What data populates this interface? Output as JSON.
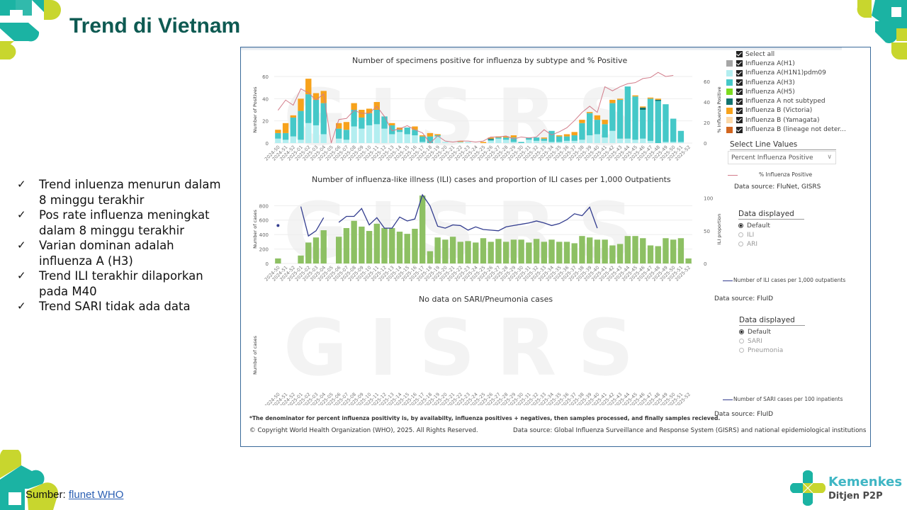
{
  "slide": {
    "title": "Trend di Vietnam",
    "bullets": [
      "Trend inluenza menurun dalam 8 minggu terakhir",
      "Pos rate influenza meningkat dalam 8 minggu terakhir",
      "Varian dominan adalah influenza A (H3)",
      "Trend ILI terakhir dilaporkan pada M40",
      "Trend SARI tidak ada data"
    ],
    "bullet_icon": "check-icon",
    "check_glyph": "✓",
    "source_label": "Sumber:",
    "source_link": "flunet WHO",
    "logo_text_1": "Kemenkes",
    "logo_text_2": "Ditjen P2P",
    "colors": {
      "title": "#0e5a52",
      "teal": "#1bb3a3",
      "lime": "#c8d62e",
      "link": "#2b5fb3"
    }
  },
  "dashboard": {
    "watermark": "GISRS",
    "legend": {
      "select_all": "Select all",
      "items": [
        {
          "label": "Influenza A(H1)",
          "color": "#a6a6a6"
        },
        {
          "label": "Influenza A(H1N1)pdm09",
          "color": "#b3eef0"
        },
        {
          "label": "Influenza A(H3)",
          "color": "#45c8c8"
        },
        {
          "label": "Influenza A(H5)",
          "color": "#7ddc1f"
        },
        {
          "label": "Influenza A not subtyped",
          "color": "#12736e"
        },
        {
          "label": "Influenza B (Victoria)",
          "color": "#f7a21b"
        },
        {
          "label": "Influenza B (Yamagata)",
          "color": "#fcd9a8"
        },
        {
          "label": "Influenza B (lineage not deter...",
          "color": "#d2661f"
        }
      ]
    },
    "select_line_values": {
      "label": "Select Line Values",
      "selected": "Percent Influenza Positive"
    },
    "line_legend_1": "% Influenza Positive",
    "data_source_1": "Data source: FluNet, GISRS",
    "data_displayed_ili": {
      "title": "Data displayed",
      "options": [
        "Default",
        "ILI",
        "ARI"
      ],
      "selected": "Default"
    },
    "line_legend_2": "Number of ILI cases per 1,000 outpatients",
    "data_source_2": "Data source: FluID",
    "data_displayed_sari": {
      "title": "Data displayed",
      "options": [
        "Default",
        "SARI",
        "Pneumonia"
      ],
      "selected": "Default"
    },
    "line_legend_3": "Number of SARI cases per 100 inpatients",
    "data_source_3": "Data source: FluID",
    "footnote": "*The denominator for percent influenza positivity is, by availabilty, influenza positives + negatives, then samples processed, and finally samples recieved.",
    "copyright": "© Copyright World Health Organization (WHO), 2025. All Rights Reserved.",
    "global_source": "Data source: Global Influenza Surveillance and Response System (GISRS) and national epidemiological institutions"
  },
  "chart_data": [
    {
      "type": "bar",
      "stacked": true,
      "title": "Number of specimens positive for influenza by subtype and % Positive",
      "xlabel": "",
      "ylabel": "Number of Positives",
      "y2label": "% Influenza Positive",
      "ylim": [
        0,
        60
      ],
      "y2lim": [
        0,
        65
      ],
      "yticks": [
        0,
        20,
        40,
        60
      ],
      "y2ticks": [
        0,
        20,
        40,
        60
      ],
      "categories": [
        "2024-50",
        "2024-51",
        "2024-52",
        "2025-01",
        "2025-02",
        "2025-03",
        "2025-04",
        "2025-05",
        "2025-06",
        "2025-07",
        "2025-08",
        "2025-09",
        "2025-10",
        "2025-11",
        "2025-12",
        "2025-13",
        "2025-14",
        "2025-15",
        "2025-16",
        "2025-17",
        "2025-18",
        "2025-19",
        "2025-20",
        "2025-21",
        "2025-22",
        "2025-23",
        "2025-24",
        "2025-25",
        "2025-26",
        "2025-27",
        "2025-28",
        "2025-29",
        "2025-30",
        "2025-31",
        "2025-32",
        "2025-33",
        "2025-34",
        "2025-35",
        "2025-36",
        "2025-37",
        "2025-38",
        "2025-39",
        "2025-40",
        "2025-41",
        "2025-42",
        "2025-43",
        "2025-44",
        "2025-45",
        "2025-46",
        "2025-47",
        "2025-48",
        "2025-49",
        "2025-50",
        "2025-51",
        "2025-52"
      ],
      "series": [
        {
          "name": "Influenza A(H1N1)pdm09",
          "color": "#b3eef0",
          "values": [
            4,
            3,
            6,
            3,
            18,
            16,
            8,
            0,
            4,
            3,
            15,
            13,
            16,
            17,
            13,
            8,
            10,
            8,
            7,
            1,
            0,
            6,
            1,
            0,
            1,
            1,
            0,
            0,
            2,
            4,
            3,
            1,
            0,
            3,
            2,
            2,
            1,
            1,
            2,
            2,
            3,
            7,
            8,
            5,
            11,
            4,
            4,
            3,
            4,
            2,
            0,
            1,
            1,
            1,
            0
          ]
        },
        {
          "name": "Influenza A(H3)",
          "color": "#45c8c8",
          "values": [
            5,
            6,
            17,
            26,
            26,
            23,
            28,
            0,
            9,
            9,
            15,
            10,
            11,
            13,
            11,
            8,
            2,
            6,
            5,
            5,
            6,
            1,
            0,
            0,
            0,
            0,
            0,
            0,
            1,
            1,
            2,
            4,
            1,
            2,
            3,
            2,
            10,
            5,
            4,
            5,
            15,
            20,
            13,
            12,
            25,
            35,
            47,
            39,
            26,
            38,
            38,
            34,
            21,
            10,
            0
          ]
        },
        {
          "name": "Influenza A not subtyped",
          "color": "#12736e",
          "values": [
            0,
            0,
            0,
            0,
            0,
            0,
            0,
            0,
            0,
            0,
            0,
            0,
            0,
            0,
            0,
            0,
            0,
            0,
            0,
            0,
            0,
            0,
            0,
            0,
            0,
            0,
            0,
            0,
            1,
            0,
            0,
            0,
            0,
            0,
            0,
            0,
            0,
            0,
            0,
            0,
            0,
            0,
            0,
            0,
            0,
            0,
            0,
            0,
            2,
            0,
            1,
            0,
            0,
            0,
            0
          ]
        },
        {
          "name": "Influenza B (Victoria)",
          "color": "#f7a21b",
          "values": [
            3,
            9,
            2,
            11,
            14,
            6,
            11,
            0,
            5,
            7,
            6,
            7,
            4,
            7,
            0,
            2,
            2,
            0,
            3,
            1,
            3,
            1,
            0,
            0,
            1,
            0,
            0,
            1,
            1,
            1,
            1,
            2,
            0,
            0,
            0,
            1,
            0,
            1,
            2,
            3,
            3,
            1,
            4,
            4,
            3,
            1,
            0,
            1,
            1,
            1,
            1,
            0,
            0,
            0,
            0
          ]
        }
      ],
      "line": {
        "name": "% Influenza Positive",
        "color": "#d27c8a",
        "values": [
          32,
          42,
          37,
          53,
          49,
          42,
          48,
          0,
          23,
          24,
          32,
          29,
          29,
          36,
          26,
          12,
          14,
          17,
          13,
          10,
          0,
          7,
          2,
          1,
          2,
          2,
          1,
          2,
          6,
          6,
          7,
          4,
          6,
          5,
          6,
          13,
          8,
          11,
          15,
          22,
          30,
          36,
          30,
          55,
          51,
          55,
          58,
          59,
          63,
          64,
          69,
          65,
          66,
          null,
          null
        ]
      }
    },
    {
      "type": "bar",
      "title": "Number of influenza-like illness (ILI) cases and proportion of ILI cases per 1,000 Outpatients",
      "xlabel": "",
      "ylabel": "Number of cases",
      "y2label": "ILI proportion",
      "ylim": [
        0,
        950
      ],
      "y2lim": [
        0,
        105
      ],
      "yticks": [
        0,
        200,
        400,
        600,
        800
      ],
      "y2ticks": [
        0,
        50,
        100
      ],
      "categories": [
        "2024-50",
        "2024-51",
        "2024-52",
        "2025-01",
        "2025-02",
        "2025-03",
        "2025-04",
        "2025-05",
        "2025-06",
        "2025-07",
        "2025-08",
        "2025-09",
        "2025-10",
        "2025-11",
        "2025-12",
        "2025-13",
        "2025-14",
        "2025-15",
        "2025-16",
        "2025-17",
        "2025-18",
        "2025-19",
        "2025-20",
        "2025-21",
        "2025-22",
        "2025-23",
        "2025-24",
        "2025-25",
        "2025-26",
        "2025-27",
        "2025-28",
        "2025-29",
        "2025-30",
        "2025-31",
        "2025-32",
        "2025-33",
        "2025-34",
        "2025-35",
        "2025-36",
        "2025-37",
        "2025-38",
        "2025-39",
        "2025-40",
        "2025-41",
        "2025-42",
        "2025-43",
        "2025-44",
        "2025-45",
        "2025-46",
        "2025-47",
        "2025-48",
        "2025-49",
        "2025-50",
        "2025-51",
        "2025-52"
      ],
      "series": [
        {
          "name": "Number of ILI cases",
          "color": "#8dc063",
          "values": [
            70,
            null,
            null,
            110,
            290,
            360,
            460,
            null,
            370,
            490,
            590,
            510,
            450,
            550,
            490,
            490,
            440,
            410,
            480,
            940,
            170,
            360,
            330,
            370,
            300,
            310,
            290,
            350,
            300,
            340,
            300,
            330,
            330,
            290,
            340,
            300,
            330,
            300,
            300,
            280,
            380,
            360,
            330,
            330,
            250,
            270,
            380,
            380,
            350,
            250,
            240,
            350,
            330,
            350,
            70
          ]
        }
      ],
      "line": {
        "name": "Number of ILI cases per 1,000 outpatients",
        "color": "#333d8f",
        "values": [
          58,
          null,
          null,
          87,
          42,
          50,
          70,
          null,
          63,
          72,
          72,
          84,
          59,
          70,
          54,
          54,
          71,
          65,
          68,
          105,
          88,
          57,
          54,
          59,
          58,
          51,
          56,
          52,
          51,
          50,
          56,
          58,
          60,
          62,
          65,
          62,
          58,
          61,
          67,
          76,
          73,
          86,
          54,
          null,
          null,
          null,
          null,
          null,
          null,
          null,
          null,
          null,
          null,
          null,
          null
        ]
      }
    },
    {
      "type": "bar",
      "title": "No data on SARI/Pneumonia cases",
      "xlabel": "",
      "ylabel": "Number of cases",
      "categories": [
        "2024-50",
        "2024-51",
        "2024-52",
        "2025-01",
        "2025-02",
        "2025-03",
        "2025-04",
        "2025-05",
        "2025-06",
        "2025-07",
        "2025-08",
        "2025-09",
        "2025-10",
        "2025-11",
        "2025-12",
        "2025-13",
        "2025-14",
        "2025-15",
        "2025-16",
        "2025-17",
        "2025-18",
        "2025-19",
        "2025-20",
        "2025-21",
        "2025-22",
        "2025-23",
        "2025-24",
        "2025-25",
        "2025-26",
        "2025-27",
        "2025-28",
        "2025-29",
        "2025-30",
        "2025-31",
        "2025-32",
        "2025-33",
        "2025-34",
        "2025-35",
        "2025-36",
        "2025-37",
        "2025-38",
        "2025-39",
        "2025-40",
        "2025-41",
        "2025-42",
        "2025-43",
        "2025-44",
        "2025-45",
        "2025-46",
        "2025-47",
        "2025-48",
        "2025-49",
        "2025-50",
        "2025-51",
        "2025-52"
      ],
      "series": []
    }
  ]
}
